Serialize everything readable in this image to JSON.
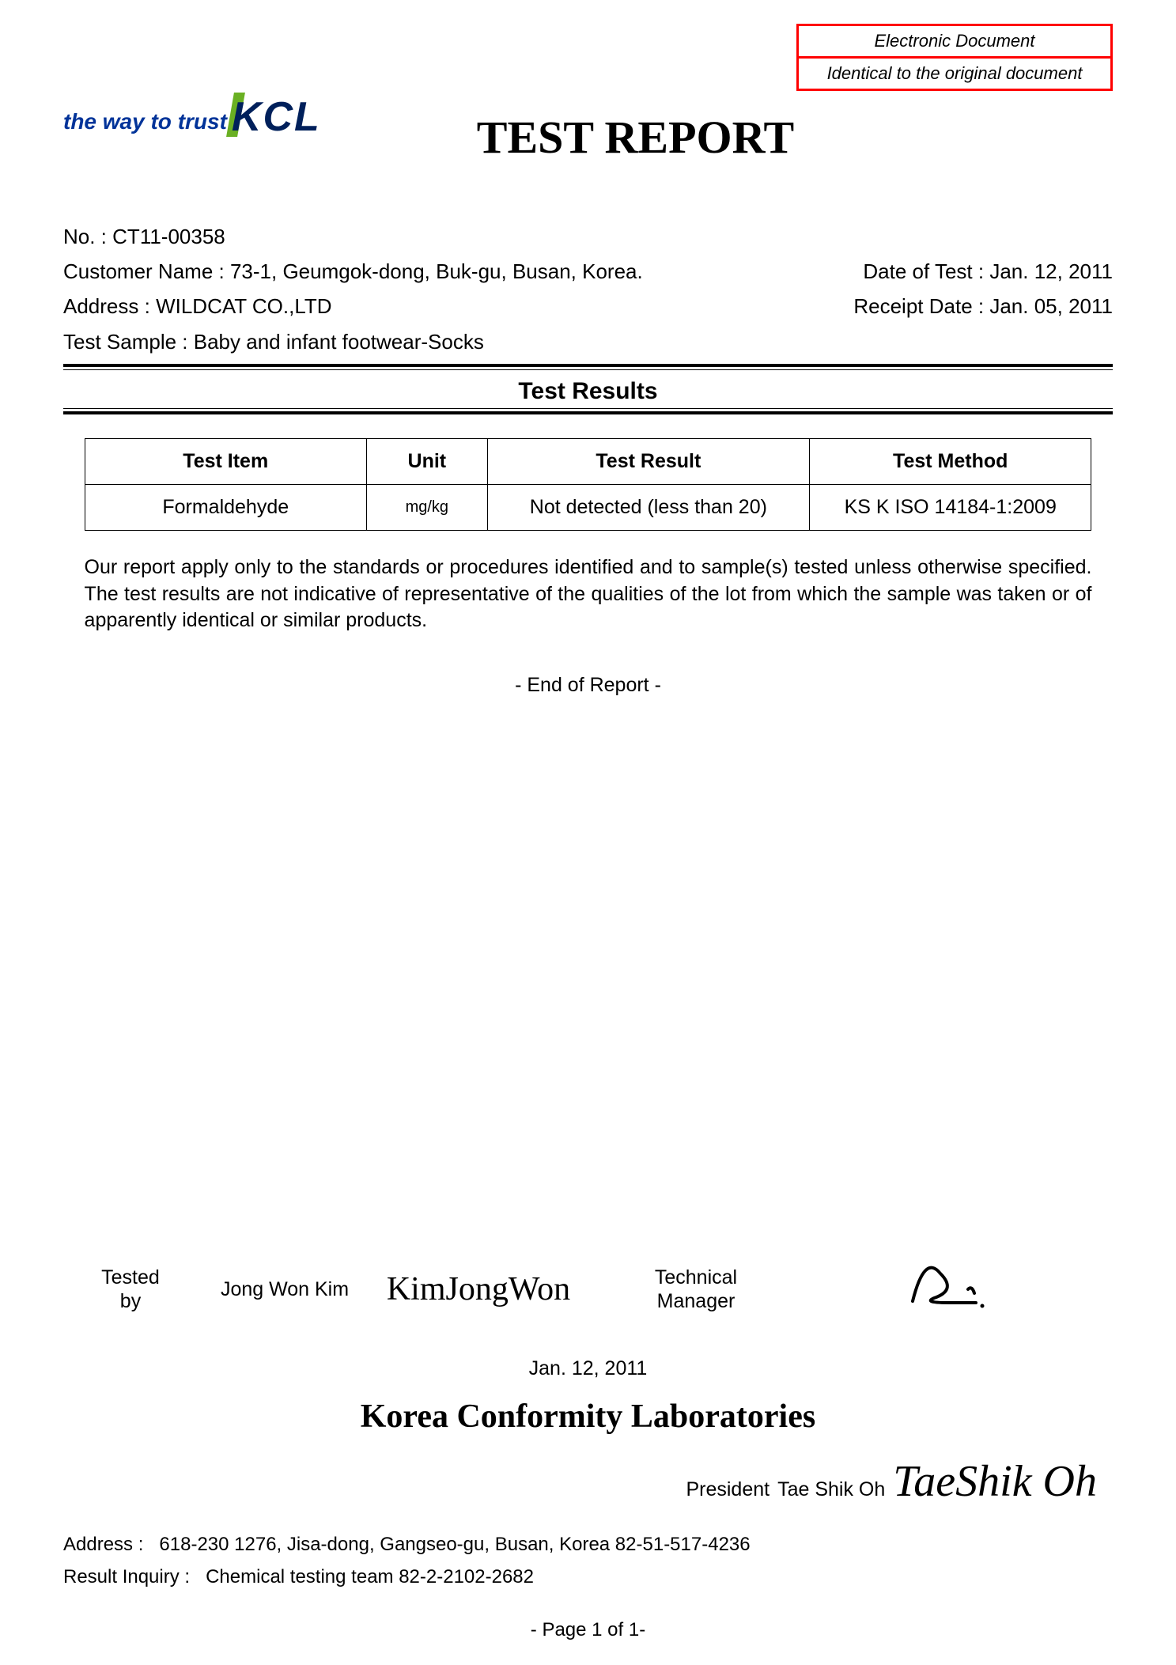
{
  "stamp": {
    "line1": "Electronic Document",
    "line2": "Identical to the original document",
    "border_color": "#ff0000",
    "font_style": "italic"
  },
  "logo": {
    "tagline": "the way to trust",
    "brand": "KCL",
    "tagline_color": "#003399",
    "brand_color": "#00205b",
    "accent_color": "#6ab023"
  },
  "title": "TEST REPORT",
  "meta": {
    "no_label": "No. :",
    "no": "CT11-00358",
    "customer_label": "Customer Name :",
    "customer": "73-1, Geumgok-dong, Buk-gu, Busan, Korea.",
    "date_test_label": "Date of Test :",
    "date_test": "Jan. 12, 2011",
    "address_label": "Address :",
    "address": "WILDCAT CO.,LTD",
    "receipt_label": "Receipt Date :",
    "receipt": "Jan. 05, 2011",
    "sample_label": "Test Sample :",
    "sample": "Baby and infant footwear-Socks"
  },
  "results": {
    "section_title": "Test Results",
    "columns": [
      "Test Item",
      "Unit",
      "Test Result",
      "Test Method"
    ],
    "col_widths": [
      "28%",
      "12%",
      "32%",
      "28%"
    ],
    "rows": [
      [
        "Formaldehyde",
        "mg/kg",
        "Not detected (less than 20)",
        "KS K ISO 14184-1:2009"
      ]
    ]
  },
  "disclaimer": "Our report apply only to the standards or procedures identified and to sample(s) tested unless otherwise specified. The test results are not indicative of representative of the qualities of the lot from which the sample was taken or of apparently identical or similar products.",
  "end_of_report": "- End of Report -",
  "signatures": {
    "tested_by_label": "Tested by",
    "tested_by_name": "Jong Won Kim",
    "tested_by_sig": "KimJongWon",
    "tech_mgr_label": "Technical Manager",
    "tech_mgr_sig": "✍",
    "date": "Jan. 12, 2011"
  },
  "organization": "Korea Conformity Laboratories",
  "president": {
    "label": "President",
    "name": "Tae Shik Oh",
    "signature": "TaeShik Oh"
  },
  "footer": {
    "address_label": "Address :",
    "address": "618-230  1276, Jisa-dong, Gangseo-gu, Busan, Korea   82-51-517-4236",
    "inquiry_label": "Result Inquiry :",
    "inquiry": "Chemical testing team   82-2-2102-2682"
  },
  "page": "- Page 1 of 1-",
  "colors": {
    "background": "#ffffff",
    "text": "#000000"
  }
}
